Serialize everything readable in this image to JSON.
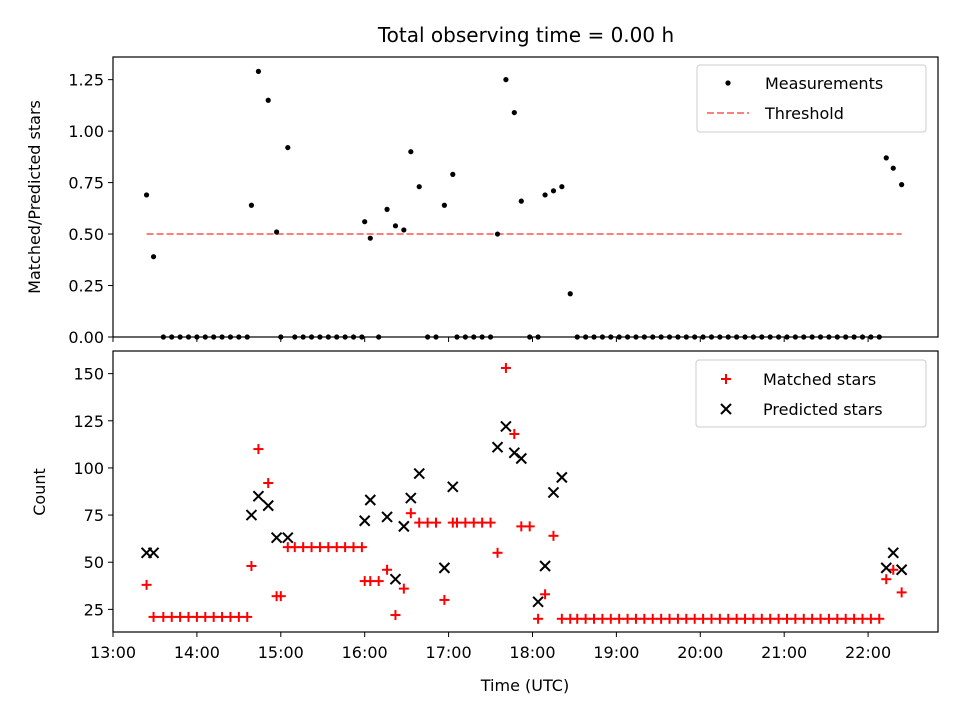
{
  "chart_data": [
    {
      "type": "scatter",
      "title": "Total observing time = 0.00 h",
      "xlabel": "",
      "ylabel": "Matched/Predicted stars",
      "xlim": [
        "13:00",
        "22:50"
      ],
      "ylim": [
        0,
        1.36
      ],
      "yticks": [
        "0.00",
        "0.25",
        "0.50",
        "0.75",
        "1.00",
        "1.25"
      ],
      "legend_position": "top-right",
      "series": [
        {
          "name": "Measurements",
          "marker": "dot",
          "color": "#000000",
          "points": [
            [
              "13:24",
              0.69
            ],
            [
              "13:29",
              0.39
            ],
            [
              "13:36",
              0
            ],
            [
              "13:42",
              0
            ],
            [
              "13:48",
              0
            ],
            [
              "13:54",
              0
            ],
            [
              "14:00",
              0
            ],
            [
              "14:06",
              0
            ],
            [
              "14:12",
              0
            ],
            [
              "14:18",
              0
            ],
            [
              "14:24",
              0
            ],
            [
              "14:30",
              0
            ],
            [
              "14:36",
              0
            ],
            [
              "14:39",
              0.64
            ],
            [
              "14:44",
              1.29
            ],
            [
              "14:51",
              1.15
            ],
            [
              "14:57",
              0.51
            ],
            [
              "15:00",
              0
            ],
            [
              "15:05",
              0.92
            ],
            [
              "15:10",
              0
            ],
            [
              "15:16",
              0
            ],
            [
              "15:22",
              0
            ],
            [
              "15:28",
              0
            ],
            [
              "15:34",
              0
            ],
            [
              "15:40",
              0
            ],
            [
              "15:46",
              0
            ],
            [
              "15:52",
              0
            ],
            [
              "15:58",
              0
            ],
            [
              "16:00",
              0.56
            ],
            [
              "16:04",
              0.48
            ],
            [
              "16:10",
              0
            ],
            [
              "16:16",
              0.62
            ],
            [
              "16:22",
              0.54
            ],
            [
              "16:28",
              0.52
            ],
            [
              "16:33",
              0.9
            ],
            [
              "16:39",
              0.73
            ],
            [
              "16:45",
              0
            ],
            [
              "16:51",
              0
            ],
            [
              "16:57",
              0.64
            ],
            [
              "17:03",
              0.79
            ],
            [
              "17:06",
              0
            ],
            [
              "17:12",
              0
            ],
            [
              "17:18",
              0
            ],
            [
              "17:24",
              0
            ],
            [
              "17:30",
              0
            ],
            [
              "17:35",
              0.5
            ],
            [
              "17:41",
              1.25
            ],
            [
              "17:47",
              1.09
            ],
            [
              "17:52",
              0.66
            ],
            [
              "17:58",
              0
            ],
            [
              "18:04",
              0
            ],
            [
              "18:09",
              0.69
            ],
            [
              "18:15",
              0.71
            ],
            [
              "18:21",
              0.73
            ],
            [
              "18:27",
              0.21
            ],
            [
              "18:32",
              0
            ],
            [
              "18:38",
              0
            ],
            [
              "18:44",
              0
            ],
            [
              "18:50",
              0
            ],
            [
              "18:56",
              0
            ],
            [
              "19:02",
              0
            ],
            [
              "19:08",
              0
            ],
            [
              "19:14",
              0
            ],
            [
              "19:20",
              0
            ],
            [
              "19:26",
              0
            ],
            [
              "19:32",
              0
            ],
            [
              "19:38",
              0
            ],
            [
              "19:44",
              0
            ],
            [
              "19:50",
              0
            ],
            [
              "19:56",
              0
            ],
            [
              "20:02",
              0
            ],
            [
              "20:08",
              0
            ],
            [
              "20:14",
              0
            ],
            [
              "20:20",
              0
            ],
            [
              "20:26",
              0
            ],
            [
              "20:32",
              0
            ],
            [
              "20:38",
              0
            ],
            [
              "20:44",
              0
            ],
            [
              "20:50",
              0
            ],
            [
              "20:56",
              0
            ],
            [
              "21:02",
              0
            ],
            [
              "21:08",
              0
            ],
            [
              "21:14",
              0
            ],
            [
              "21:20",
              0
            ],
            [
              "21:26",
              0
            ],
            [
              "21:32",
              0
            ],
            [
              "21:38",
              0
            ],
            [
              "21:44",
              0
            ],
            [
              "21:50",
              0
            ],
            [
              "21:56",
              0
            ],
            [
              "22:02",
              0
            ],
            [
              "22:08",
              0
            ],
            [
              "22:13",
              0.87
            ],
            [
              "22:18",
              0.82
            ],
            [
              "22:24",
              0.74
            ]
          ]
        },
        {
          "name": "Threshold",
          "type": "line",
          "style": "dashed",
          "color": "#ff7f7f",
          "points": [
            [
              "13:24",
              0.5
            ],
            [
              "22:24",
              0.5
            ]
          ]
        }
      ]
    },
    {
      "type": "scatter",
      "title": "",
      "xlabel": "Time (UTC)",
      "ylabel": "Count",
      "xlim": [
        "13:00",
        "22:50"
      ],
      "ylim": [
        13,
        162
      ],
      "xticks": [
        "13:00",
        "14:00",
        "15:00",
        "16:00",
        "17:00",
        "18:00",
        "19:00",
        "20:00",
        "21:00",
        "22:00"
      ],
      "yticks": [
        "25",
        "50",
        "75",
        "100",
        "125",
        "150"
      ],
      "legend_position": "top-right",
      "series": [
        {
          "name": "Matched stars",
          "marker": "plus",
          "color": "#ff0000",
          "points": [
            [
              "13:24",
              38
            ],
            [
              "13:29",
              21
            ],
            [
              "13:36",
              21
            ],
            [
              "13:42",
              21
            ],
            [
              "13:48",
              21
            ],
            [
              "13:54",
              21
            ],
            [
              "14:00",
              21
            ],
            [
              "14:06",
              21
            ],
            [
              "14:12",
              21
            ],
            [
              "14:18",
              21
            ],
            [
              "14:24",
              21
            ],
            [
              "14:30",
              21
            ],
            [
              "14:36",
              21
            ],
            [
              "14:39",
              48
            ],
            [
              "14:44",
              110
            ],
            [
              "14:51",
              92
            ],
            [
              "14:57",
              32
            ],
            [
              "15:00",
              32
            ],
            [
              "15:05",
              58
            ],
            [
              "15:10",
              58
            ],
            [
              "15:16",
              58
            ],
            [
              "15:22",
              58
            ],
            [
              "15:28",
              58
            ],
            [
              "15:34",
              58
            ],
            [
              "15:40",
              58
            ],
            [
              "15:46",
              58
            ],
            [
              "15:52",
              58
            ],
            [
              "15:58",
              58
            ],
            [
              "16:00",
              40
            ],
            [
              "16:04",
              40
            ],
            [
              "16:10",
              40
            ],
            [
              "16:16",
              46
            ],
            [
              "16:22",
              22
            ],
            [
              "16:28",
              36
            ],
            [
              "16:33",
              76
            ],
            [
              "16:39",
              71
            ],
            [
              "16:45",
              71
            ],
            [
              "16:51",
              71
            ],
            [
              "16:57",
              30
            ],
            [
              "17:03",
              71
            ],
            [
              "17:06",
              71
            ],
            [
              "17:12",
              71
            ],
            [
              "17:18",
              71
            ],
            [
              "17:24",
              71
            ],
            [
              "17:30",
              71
            ],
            [
              "17:35",
              55
            ],
            [
              "17:41",
              153
            ],
            [
              "17:47",
              118
            ],
            [
              "17:52",
              69
            ],
            [
              "17:58",
              69
            ],
            [
              "18:04",
              20
            ],
            [
              "18:09",
              33
            ],
            [
              "18:15",
              64
            ],
            [
              "18:21",
              20
            ],
            [
              "18:27",
              20
            ],
            [
              "18:32",
              20
            ],
            [
              "18:38",
              20
            ],
            [
              "18:44",
              20
            ],
            [
              "18:50",
              20
            ],
            [
              "18:56",
              20
            ],
            [
              "19:02",
              20
            ],
            [
              "19:08",
              20
            ],
            [
              "19:14",
              20
            ],
            [
              "19:20",
              20
            ],
            [
              "19:26",
              20
            ],
            [
              "19:32",
              20
            ],
            [
              "19:38",
              20
            ],
            [
              "19:44",
              20
            ],
            [
              "19:50",
              20
            ],
            [
              "19:56",
              20
            ],
            [
              "20:02",
              20
            ],
            [
              "20:08",
              20
            ],
            [
              "20:14",
              20
            ],
            [
              "20:20",
              20
            ],
            [
              "20:26",
              20
            ],
            [
              "20:32",
              20
            ],
            [
              "20:38",
              20
            ],
            [
              "20:44",
              20
            ],
            [
              "20:50",
              20
            ],
            [
              "20:56",
              20
            ],
            [
              "21:02",
              20
            ],
            [
              "21:08",
              20
            ],
            [
              "21:14",
              20
            ],
            [
              "21:20",
              20
            ],
            [
              "21:26",
              20
            ],
            [
              "21:32",
              20
            ],
            [
              "21:38",
              20
            ],
            [
              "21:44",
              20
            ],
            [
              "21:50",
              20
            ],
            [
              "21:56",
              20
            ],
            [
              "22:02",
              20
            ],
            [
              "22:08",
              20
            ],
            [
              "22:13",
              41
            ],
            [
              "22:18",
              46
            ],
            [
              "22:24",
              34
            ]
          ]
        },
        {
          "name": "Predicted stars",
          "marker": "x",
          "color": "#000000",
          "points": [
            [
              "13:24",
              55
            ],
            [
              "13:29",
              55
            ],
            [
              "14:39",
              75
            ],
            [
              "14:44",
              85
            ],
            [
              "14:51",
              80
            ],
            [
              "14:57",
              63
            ],
            [
              "15:05",
              63
            ],
            [
              "16:00",
              72
            ],
            [
              "16:04",
              83
            ],
            [
              "16:16",
              74
            ],
            [
              "16:22",
              41
            ],
            [
              "16:28",
              69
            ],
            [
              "16:33",
              84
            ],
            [
              "16:39",
              97
            ],
            [
              "16:57",
              47
            ],
            [
              "17:03",
              90
            ],
            [
              "17:35",
              111
            ],
            [
              "17:41",
              122
            ],
            [
              "17:47",
              108
            ],
            [
              "17:52",
              105
            ],
            [
              "18:04",
              29
            ],
            [
              "18:09",
              48
            ],
            [
              "18:15",
              87
            ],
            [
              "18:21",
              95
            ],
            [
              "22:13",
              47
            ],
            [
              "22:18",
              55
            ],
            [
              "22:24",
              46
            ]
          ]
        }
      ]
    }
  ]
}
